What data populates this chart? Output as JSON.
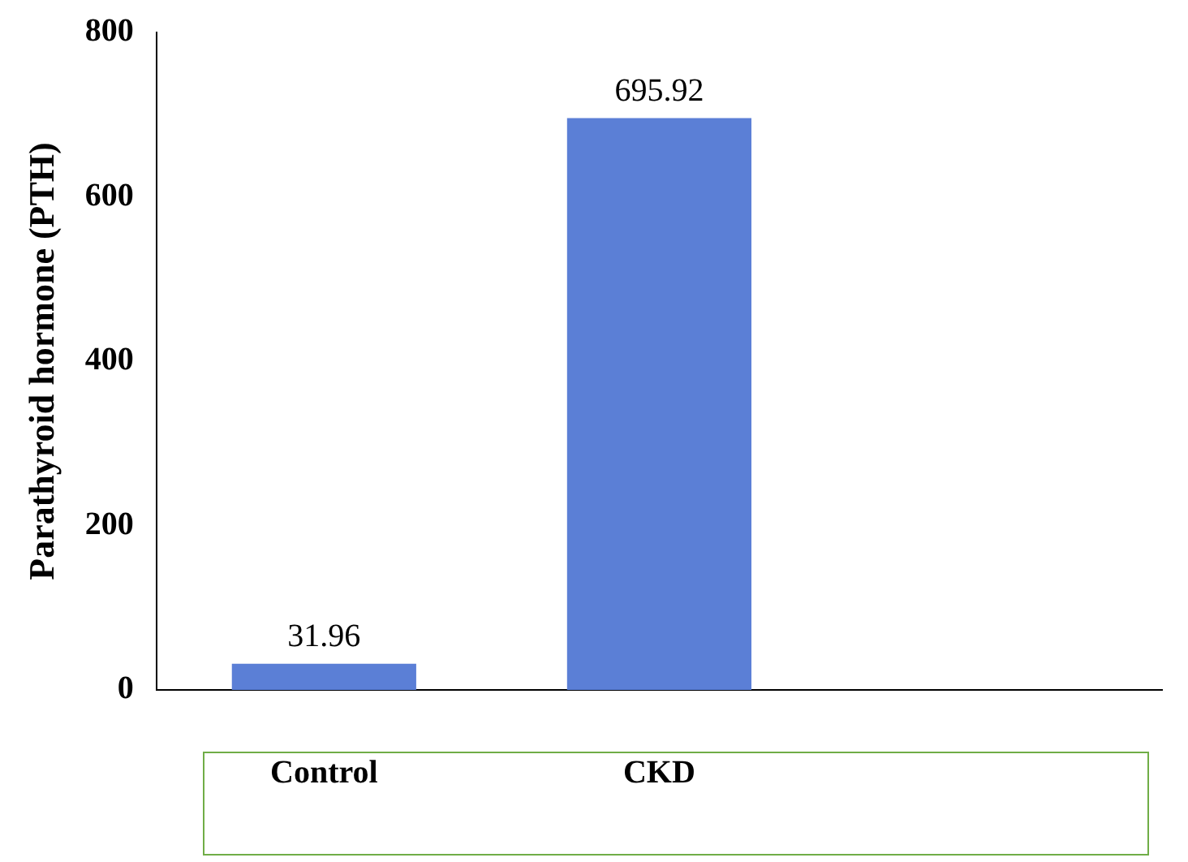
{
  "chart_data": {
    "type": "bar",
    "categories": [
      "Control",
      "CKD",
      null
    ],
    "values": [
      31.96,
      695.92,
      null
    ],
    "color": "#5b7fd6",
    "ylabel": "Parathyroid hormone (PTH)",
    "ylim": [
      0,
      800
    ],
    "yticks": [
      0,
      200,
      400,
      600,
      800
    ],
    "grid": false,
    "legend": false,
    "data_labels": true
  }
}
